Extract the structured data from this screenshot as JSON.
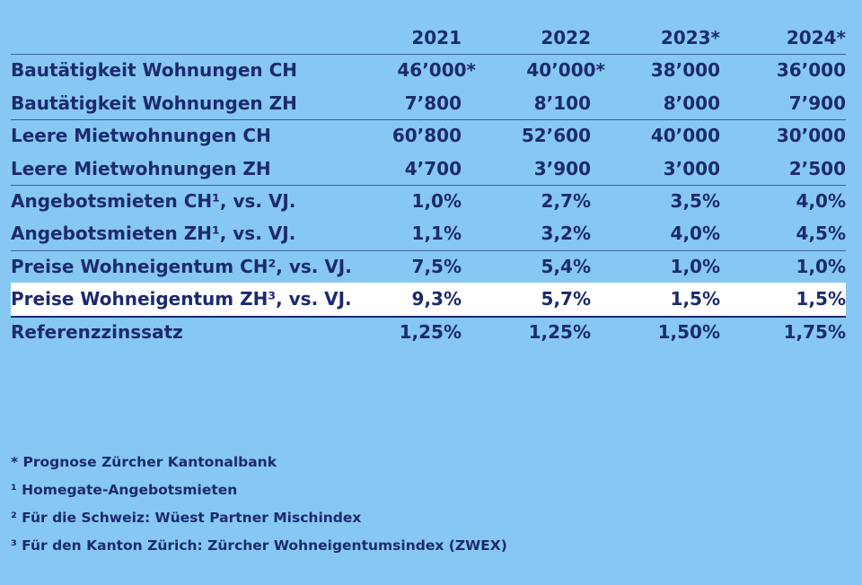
{
  "chart_data": {
    "type": "table",
    "columns": [
      "2021",
      "2022",
      "2023*",
      "2024*"
    ],
    "rows": [
      {
        "label": "Bautätigkeit Wohnungen CH",
        "values": [
          "46’000*",
          "40’000*",
          "38’000",
          "36’000"
        ]
      },
      {
        "label": "Bautätigkeit Wohnungen ZH",
        "values": [
          "7’800",
          "8’100",
          "8’000",
          "7’900"
        ]
      },
      {
        "label": "Leere Mietwohnungen CH",
        "values": [
          "60’800",
          "52’600",
          "40’000",
          "30’000"
        ]
      },
      {
        "label": "Leere Mietwohnungen ZH",
        "values": [
          "4’700",
          "3’900",
          "3’000",
          "2’500"
        ]
      },
      {
        "label": "Angebotsmieten CH¹, vs. VJ.",
        "values": [
          "1,0%",
          "2,7%",
          "3,5%",
          "4,0%"
        ]
      },
      {
        "label": "Angebotsmieten ZH¹, vs. VJ.",
        "values": [
          "1,1%",
          "3,2%",
          "4,0%",
          "4,5%"
        ]
      },
      {
        "label": "Preise Wohneigentum CH², vs. VJ.",
        "values": [
          "7,5%",
          "5,4%",
          "1,0%",
          "1,0%"
        ]
      },
      {
        "label": "Preise Wohneigentum ZH³, vs. VJ.",
        "values": [
          "9,3%",
          "5,7%",
          "1,5%",
          "1,5%"
        ]
      },
      {
        "label": "Referenzzinssatz",
        "values": [
          "1,25%",
          "1,25%",
          "1,50%",
          "1,75%"
        ]
      }
    ],
    "highlighted_row": 7
  },
  "footnotes": [
    "* Prognose Zürcher Kantonalbank",
    "¹ Homegate-Angebotsmieten",
    "² Für die Schweiz: Wüest Partner Mischindex",
    "³ Für den Kanton Zürich: Zürcher Wohneigentumsindex (ZWEX)"
  ],
  "colors": {
    "background": "#86c8f1",
    "text": "#1d2a6e",
    "highlight_row": "#ffffff",
    "divider": "#3f5da0"
  }
}
